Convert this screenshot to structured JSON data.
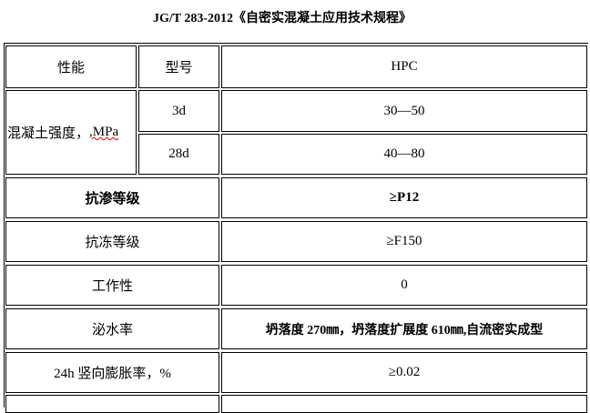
{
  "title": "JG/T 283-2012《自密实混凝土应用技术规程》",
  "header": {
    "property": "性能",
    "model": "型号",
    "hpc": "HPC"
  },
  "strength": {
    "label_cn": "混凝土强度，",
    "label_unit": ",MPa",
    "rows": [
      {
        "age": "3d",
        "value": "30—50"
      },
      {
        "age": "28d",
        "value": "40—80"
      }
    ]
  },
  "rows": [
    {
      "label": "抗渗等级",
      "value": "≥P12",
      "bold": true
    },
    {
      "label": "抗冻等级",
      "value": "≥F150"
    },
    {
      "label": "工作性",
      "value": "0"
    },
    {
      "label": "泌水率",
      "value": "坍落度 270㎜，坍落度扩展度 610㎜,自流密实成型",
      "bold_value": true
    },
    {
      "label": "24h 竖向膨胀率，%",
      "value": "≥0.02"
    }
  ]
}
